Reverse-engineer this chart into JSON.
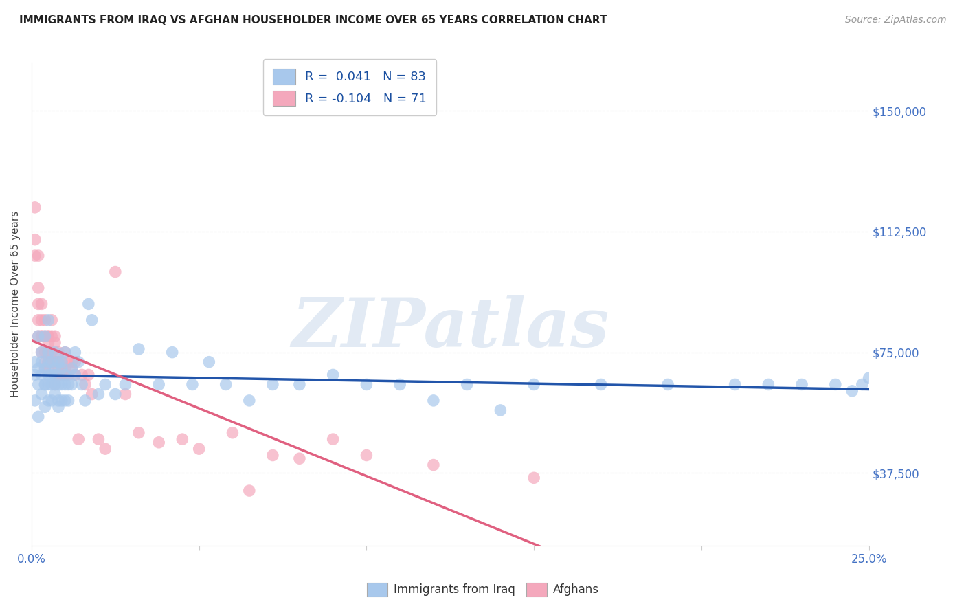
{
  "title": "IMMIGRANTS FROM IRAQ VS AFGHAN HOUSEHOLDER INCOME OVER 65 YEARS CORRELATION CHART",
  "source": "Source: ZipAtlas.com",
  "ylabel": "Householder Income Over 65 years",
  "ytick_labels": [
    "$150,000",
    "$112,500",
    "$75,000",
    "$37,500"
  ],
  "ytick_values": [
    150000,
    112500,
    75000,
    37500
  ],
  "xmin": 0.0,
  "xmax": 0.25,
  "ymin": 15000,
  "ymax": 165000,
  "iraq_R": 0.041,
  "iraq_N": 83,
  "afghan_R": -0.104,
  "afghan_N": 71,
  "iraq_color": "#A8C8EC",
  "afghan_color": "#F4A8BC",
  "iraq_line_color": "#2255AA",
  "afghan_line_color": "#E06080",
  "iraq_x": [
    0.001,
    0.001,
    0.001,
    0.002,
    0.002,
    0.002,
    0.002,
    0.003,
    0.003,
    0.003,
    0.003,
    0.004,
    0.004,
    0.004,
    0.004,
    0.004,
    0.005,
    0.005,
    0.005,
    0.005,
    0.005,
    0.005,
    0.006,
    0.006,
    0.006,
    0.006,
    0.007,
    0.007,
    0.007,
    0.007,
    0.007,
    0.008,
    0.008,
    0.008,
    0.008,
    0.009,
    0.009,
    0.009,
    0.009,
    0.01,
    0.01,
    0.01,
    0.01,
    0.011,
    0.011,
    0.012,
    0.012,
    0.013,
    0.013,
    0.014,
    0.015,
    0.016,
    0.017,
    0.018,
    0.02,
    0.022,
    0.025,
    0.028,
    0.032,
    0.038,
    0.042,
    0.048,
    0.053,
    0.058,
    0.065,
    0.072,
    0.08,
    0.09,
    0.1,
    0.11,
    0.12,
    0.13,
    0.14,
    0.15,
    0.17,
    0.19,
    0.21,
    0.22,
    0.23,
    0.24,
    0.245,
    0.248,
    0.25
  ],
  "iraq_y": [
    68000,
    60000,
    72000,
    65000,
    55000,
    70000,
    80000,
    68000,
    62000,
    75000,
    72000,
    65000,
    70000,
    58000,
    65000,
    80000,
    72000,
    60000,
    65000,
    68000,
    75000,
    85000,
    68000,
    72000,
    60000,
    65000,
    68000,
    62000,
    70000,
    65000,
    75000,
    60000,
    65000,
    58000,
    72000,
    65000,
    60000,
    70000,
    72000,
    65000,
    68000,
    60000,
    75000,
    65000,
    60000,
    70000,
    65000,
    68000,
    75000,
    72000,
    65000,
    60000,
    90000,
    85000,
    62000,
    65000,
    62000,
    65000,
    76000,
    65000,
    75000,
    65000,
    72000,
    65000,
    60000,
    65000,
    65000,
    68000,
    65000,
    65000,
    60000,
    65000,
    57000,
    65000,
    65000,
    65000,
    65000,
    65000,
    65000,
    65000,
    63000,
    65000,
    67000
  ],
  "afghan_x": [
    0.001,
    0.001,
    0.001,
    0.002,
    0.002,
    0.002,
    0.002,
    0.002,
    0.003,
    0.003,
    0.003,
    0.003,
    0.003,
    0.004,
    0.004,
    0.004,
    0.004,
    0.004,
    0.005,
    0.005,
    0.005,
    0.005,
    0.005,
    0.005,
    0.005,
    0.006,
    0.006,
    0.006,
    0.006,
    0.007,
    0.007,
    0.007,
    0.007,
    0.007,
    0.008,
    0.008,
    0.008,
    0.008,
    0.009,
    0.009,
    0.009,
    0.01,
    0.01,
    0.01,
    0.011,
    0.011,
    0.012,
    0.012,
    0.013,
    0.013,
    0.014,
    0.015,
    0.016,
    0.017,
    0.018,
    0.02,
    0.022,
    0.025,
    0.028,
    0.032,
    0.038,
    0.045,
    0.05,
    0.06,
    0.065,
    0.072,
    0.08,
    0.09,
    0.1,
    0.12,
    0.15
  ],
  "afghan_y": [
    120000,
    110000,
    105000,
    105000,
    95000,
    90000,
    85000,
    80000,
    90000,
    85000,
    80000,
    80000,
    75000,
    85000,
    80000,
    75000,
    70000,
    72000,
    80000,
    78000,
    75000,
    72000,
    70000,
    80000,
    72000,
    85000,
    80000,
    75000,
    72000,
    78000,
    72000,
    68000,
    65000,
    80000,
    75000,
    70000,
    68000,
    72000,
    72000,
    68000,
    70000,
    75000,
    70000,
    68000,
    68000,
    72000,
    70000,
    72000,
    68000,
    72000,
    48000,
    68000,
    65000,
    68000,
    62000,
    48000,
    45000,
    100000,
    62000,
    50000,
    47000,
    48000,
    45000,
    50000,
    32000,
    43000,
    42000,
    48000,
    43000,
    40000,
    36000
  ]
}
